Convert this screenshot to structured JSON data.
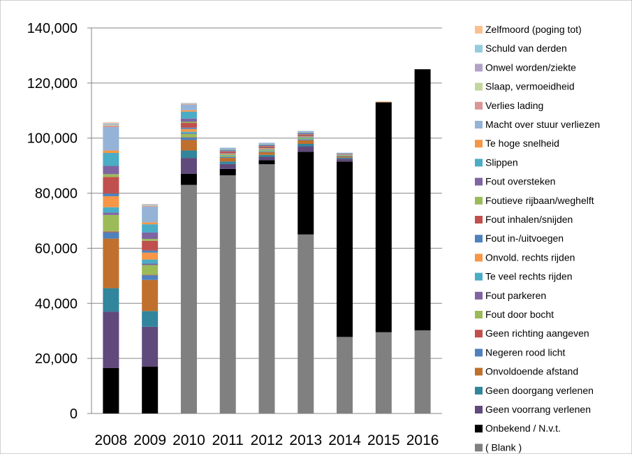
{
  "chart_data": {
    "type": "bar",
    "stacked": true,
    "title": "",
    "xlabel": "",
    "ylabel": "",
    "categories": [
      "2008",
      "2009",
      "2010",
      "2011",
      "2012",
      "2013",
      "2014",
      "2015",
      "2016"
    ],
    "ylim": [
      0,
      140000
    ],
    "yticks": [
      0,
      20000,
      40000,
      60000,
      80000,
      100000,
      120000,
      140000
    ],
    "ytick_labels": [
      "0",
      "20,000",
      "40,000",
      "60,000",
      "80,000",
      "100,000",
      "120,000",
      "140,000"
    ],
    "grid": true,
    "legend_position": "right",
    "series": [
      {
        "name": "( Blank )",
        "color": "#808080",
        "values": [
          0,
          0,
          83000,
          86500,
          90500,
          65000,
          27800,
          29500,
          30200
        ]
      },
      {
        "name": "Onbekend / N.v.t.",
        "color": "#000000",
        "values": [
          16500,
          17000,
          4000,
          2300,
          1500,
          30000,
          63700,
          83500,
          94800
        ]
      },
      {
        "name": "Geen voorrang verlenen",
        "color": "#604a7b",
        "values": [
          20500,
          14500,
          5800,
          1800,
          1200,
          2000,
          1000,
          0,
          0
        ]
      },
      {
        "name": "Geen doorgang verlenen",
        "color": "#31859c",
        "values": [
          8500,
          5700,
          2700,
          900,
          700,
          900,
          400,
          0,
          0
        ]
      },
      {
        "name": "Onvoldoende afstand",
        "color": "#c0702c",
        "values": [
          18000,
          11300,
          3800,
          1300,
          1000,
          1300,
          500,
          0,
          0
        ]
      },
      {
        "name": "Negeren rood licht",
        "color": "#4f81bd",
        "values": [
          2300,
          1700,
          900,
          400,
          300,
          400,
          200,
          0,
          0
        ]
      },
      {
        "name": "Geen richting aangeven",
        "color": "#c0504d",
        "values": [
          300,
          200,
          100,
          0,
          0,
          0,
          0,
          0,
          0
        ]
      },
      {
        "name": "Fout door bocht",
        "color": "#9bbb59",
        "values": [
          6000,
          3500,
          1200,
          500,
          400,
          400,
          200,
          0,
          0
        ]
      },
      {
        "name": "Fout parkeren",
        "color": "#8064a2",
        "values": [
          800,
          500,
          200,
          0,
          0,
          0,
          0,
          0,
          0
        ]
      },
      {
        "name": "Te veel rechts rijden",
        "color": "#4bacc6",
        "values": [
          2000,
          1500,
          600,
          300,
          300,
          300,
          100,
          0,
          0
        ]
      },
      {
        "name": "Onvold. rechts rijden",
        "color": "#f79646",
        "values": [
          4000,
          2500,
          1000,
          400,
          400,
          300,
          100,
          0,
          0
        ]
      },
      {
        "name": "Fout in-/uitvoegen",
        "color": "#4f81bd",
        "values": [
          1000,
          800,
          500,
          200,
          200,
          200,
          100,
          0,
          0
        ]
      },
      {
        "name": "Fout inhalen/snijden",
        "color": "#c0504d",
        "values": [
          6000,
          3500,
          1700,
          500,
          500,
          500,
          200,
          0,
          0
        ]
      },
      {
        "name": "Foutieve rijbaan/weghelft",
        "color": "#9bbb59",
        "values": [
          1000,
          700,
          400,
          100,
          100,
          100,
          0,
          0,
          0
        ]
      },
      {
        "name": "Fout oversteken",
        "color": "#8064a2",
        "values": [
          3000,
          2300,
          1200,
          300,
          300,
          300,
          100,
          0,
          0
        ]
      },
      {
        "name": "Slippen",
        "color": "#4bacc6",
        "values": [
          4700,
          3000,
          2500,
          300,
          300,
          300,
          100,
          0,
          0
        ]
      },
      {
        "name": "Te hoge snelheid",
        "color": "#f79646",
        "values": [
          900,
          700,
          500,
          100,
          100,
          100,
          0,
          0,
          0
        ]
      },
      {
        "name": "Macht over stuur verliezen",
        "color": "#95b3d7",
        "values": [
          8500,
          5700,
          2000,
          600,
          500,
          500,
          200,
          0,
          0
        ]
      },
      {
        "name": "Verlies lading",
        "color": "#d99694",
        "values": [
          500,
          300,
          200,
          0,
          0,
          0,
          0,
          0,
          0
        ]
      },
      {
        "name": "Slaap, vermoeidheid",
        "color": "#c3d69b",
        "values": [
          300,
          200,
          100,
          0,
          0,
          0,
          0,
          0,
          0
        ]
      },
      {
        "name": "Onwel worden/ziekte",
        "color": "#b3a2c7",
        "values": [
          300,
          200,
          100,
          0,
          0,
          0,
          0,
          0,
          0
        ]
      },
      {
        "name": "Schuld van derden",
        "color": "#93cddd",
        "values": [
          300,
          200,
          200,
          0,
          0,
          0,
          0,
          0,
          0
        ]
      },
      {
        "name": "Zelfmoord (poging tot)",
        "color": "#fac090",
        "values": [
          300,
          100,
          100,
          0,
          0,
          0,
          0,
          300,
          0
        ]
      }
    ]
  }
}
